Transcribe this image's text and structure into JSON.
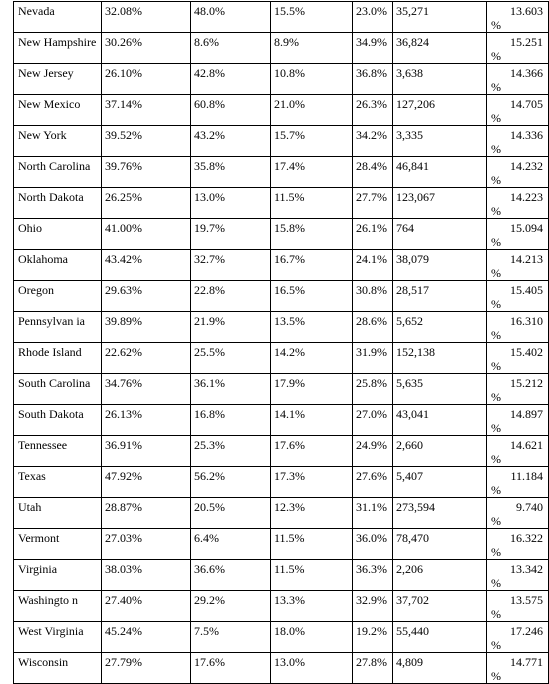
{
  "table": {
    "rows": [
      {
        "state": "Nevada",
        "v1": "32.08%",
        "v2": "48.0%",
        "v3": "15.5%",
        "v4": "23.0%",
        "v5": "35,271",
        "v6_num": "13.603",
        "v6_unit": "%"
      },
      {
        "state": "New Hampshire",
        "v1": "30.26%",
        "v2": "8.6%",
        "v3": "8.9%",
        "v4": "34.9%",
        "v5": "36,824",
        "v6_num": "15.251",
        "v6_unit": "%"
      },
      {
        "state": "New Jersey",
        "v1": "26.10%",
        "v2": "42.8%",
        "v3": "10.8%",
        "v4": "36.8%",
        "v5": "3,638",
        "v6_num": "14.366",
        "v6_unit": "%"
      },
      {
        "state": "New Mexico",
        "v1": "37.14%",
        "v2": "60.8%",
        "v3": "21.0%",
        "v4": "26.3%",
        "v5": "127,206",
        "v6_num": "14.705",
        "v6_unit": "%"
      },
      {
        "state": "New York",
        "v1": "39.52%",
        "v2": "43.2%",
        "v3": "15.7%",
        "v4": "34.2%",
        "v5": "3,335",
        "v6_num": "14.336",
        "v6_unit": "%"
      },
      {
        "state": "North Carolina",
        "v1": "39.76%",
        "v2": "35.8%",
        "v3": "17.4%",
        "v4": "28.4%",
        "v5": "46,841",
        "v6_num": "14.232",
        "v6_unit": "%"
      },
      {
        "state": "North Dakota",
        "v1": "26.25%",
        "v2": "13.0%",
        "v3": "11.5%",
        "v4": "27.7%",
        "v5": "123,067",
        "v6_num": "14.223",
        "v6_unit": "%"
      },
      {
        "state": "Ohio",
        "v1": "41.00%",
        "v2": "19.7%",
        "v3": "15.8%",
        "v4": "26.1%",
        "v5": "764",
        "v6_num": "15.094",
        "v6_unit": "%"
      },
      {
        "state": "Oklahoma",
        "v1": "43.42%",
        "v2": "32.7%",
        "v3": "16.7%",
        "v4": "24.1%",
        "v5": "38,079",
        "v6_num": "14.213",
        "v6_unit": "%"
      },
      {
        "state": "Oregon",
        "v1": "29.63%",
        "v2": "22.8%",
        "v3": "16.5%",
        "v4": "30.8%",
        "v5": "28,517",
        "v6_num": "15.405",
        "v6_unit": "%"
      },
      {
        "state": "Pennsylvan ia",
        "v1": "39.89%",
        "v2": "21.9%",
        "v3": "13.5%",
        "v4": "28.6%",
        "v5": "5,652",
        "v6_num": "16.310",
        "v6_unit": "%"
      },
      {
        "state": "Rhode Island",
        "v1": "22.62%",
        "v2": "25.5%",
        "v3": "14.2%",
        "v4": "31.9%",
        "v5": "152,138",
        "v6_num": "15.402",
        "v6_unit": "%"
      },
      {
        "state": "South Carolina",
        "v1": "34.76%",
        "v2": "36.1%",
        "v3": "17.9%",
        "v4": "25.8%",
        "v5": "5,635",
        "v6_num": "15.212",
        "v6_unit": "%"
      },
      {
        "state": "South Dakota",
        "v1": "26.13%",
        "v2": "16.8%",
        "v3": "14.1%",
        "v4": "27.0%",
        "v5": "43,041",
        "v6_num": "14.897",
        "v6_unit": "%"
      },
      {
        "state": "Tennessee",
        "v1": "36.91%",
        "v2": "25.3%",
        "v3": "17.6%",
        "v4": "24.9%",
        "v5": "2,660",
        "v6_num": "14.621",
        "v6_unit": "%"
      },
      {
        "state": "Texas",
        "v1": "47.92%",
        "v2": "56.2%",
        "v3": "17.3%",
        "v4": "27.6%",
        "v5": "5,407",
        "v6_num": "11.184",
        "v6_unit": "%"
      },
      {
        "state": "Utah",
        "v1": "28.87%",
        "v2": "20.5%",
        "v3": "12.3%",
        "v4": "31.1%",
        "v5": "273,594",
        "v6_num": "9.740",
        "v6_unit": "%"
      },
      {
        "state": "Vermont",
        "v1": "27.03%",
        "v2": "6.4%",
        "v3": "11.5%",
        "v4": "36.0%",
        "v5": "78,470",
        "v6_num": "16.322",
        "v6_unit": "%"
      },
      {
        "state": "Virginia",
        "v1": "38.03%",
        "v2": "36.6%",
        "v3": "11.5%",
        "v4": "36.3%",
        "v5": "2,206",
        "v6_num": "13.342",
        "v6_unit": "%"
      },
      {
        "state": "Washingto n",
        "v1": "27.40%",
        "v2": "29.2%",
        "v3": "13.3%",
        "v4": "32.9%",
        "v5": "37,702",
        "v6_num": "13.575",
        "v6_unit": "%"
      },
      {
        "state": "West Virginia",
        "v1": "45.24%",
        "v2": "7.5%",
        "v3": "18.0%",
        "v4": "19.2%",
        "v5": "55,440",
        "v6_num": "17.246",
        "v6_unit": "%"
      },
      {
        "state": "Wisconsin",
        "v1": "27.79%",
        "v2": "17.6%",
        "v3": "13.0%",
        "v4": "27.8%",
        "v5": "4,809",
        "v6_num": "14.771",
        "v6_unit": "%"
      }
    ]
  }
}
